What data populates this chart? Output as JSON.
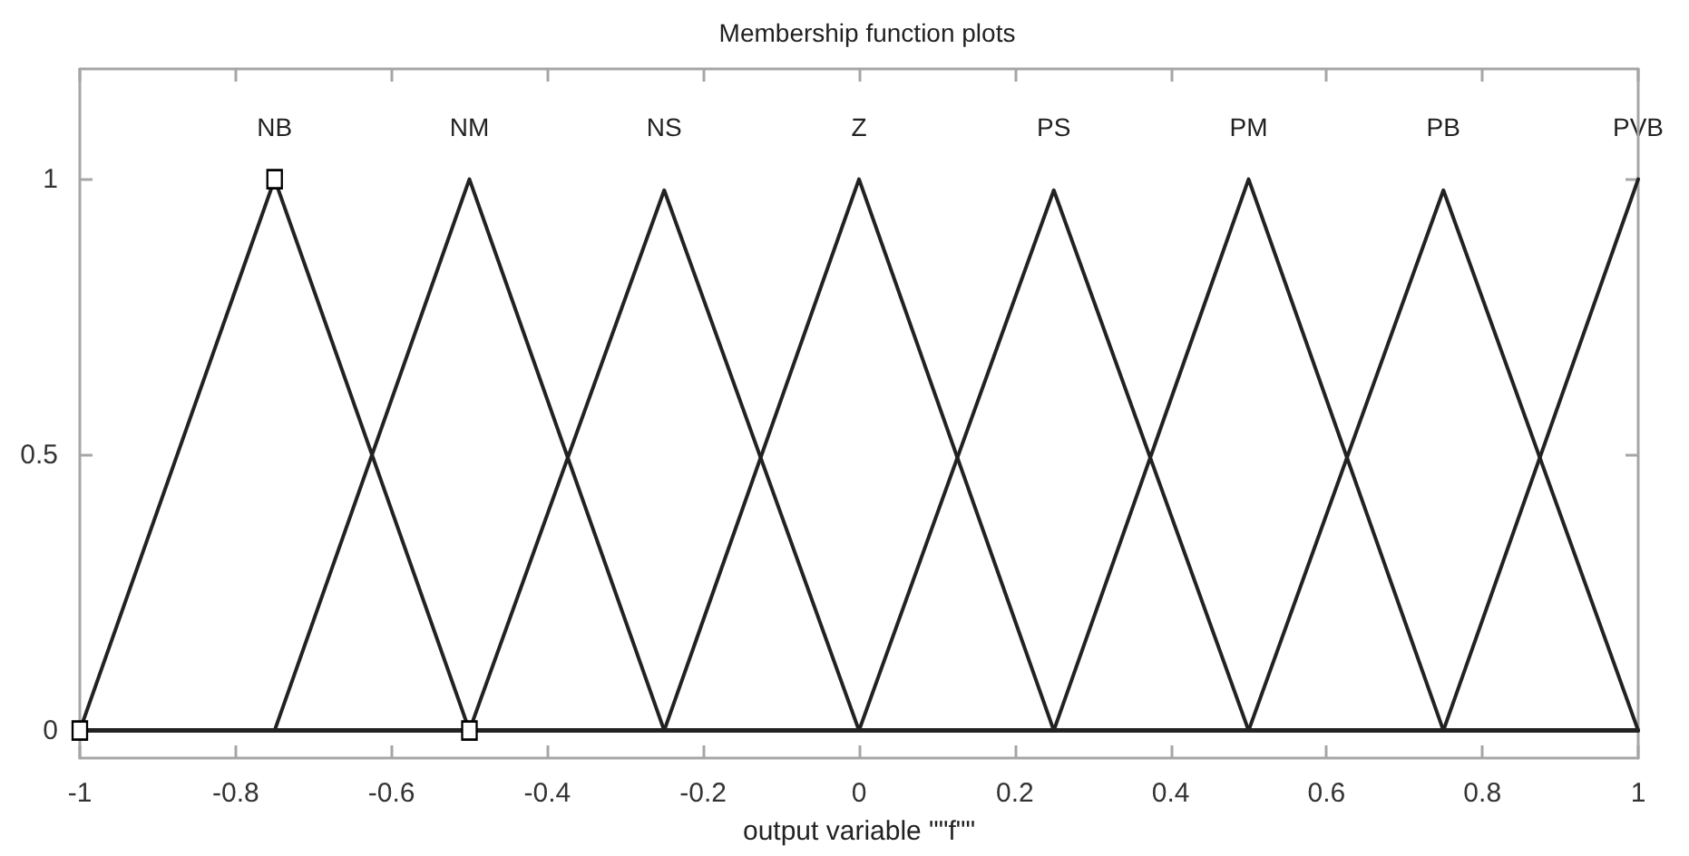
{
  "chart_data": {
    "type": "line",
    "title": "Membership function plots",
    "xlabel": "output variable \"\"f\"\"",
    "xlim": [
      -1,
      1
    ],
    "xticks": [
      -1,
      -0.8,
      -0.6,
      -0.4,
      -0.2,
      0,
      0.2,
      0.4,
      0.6,
      0.8,
      1
    ],
    "ylim": [
      -0.05,
      1.2
    ],
    "yticks": [
      0,
      0.5,
      1
    ],
    "line_style": "solid",
    "series": [
      {
        "name": "NB",
        "color": "#222222",
        "x": [
          -1,
          -0.75,
          -0.5,
          1
        ],
        "values": [
          0,
          1,
          0,
          0
        ]
      },
      {
        "name": "NM",
        "color": "#222222",
        "x": [
          -1,
          -0.75,
          -0.5,
          -0.25,
          1
        ],
        "values": [
          0,
          0,
          1,
          0,
          0
        ]
      },
      {
        "name": "NS",
        "color": "#222222",
        "x": [
          -1,
          -0.5,
          -0.25,
          0,
          1
        ],
        "values": [
          0,
          0,
          0.98,
          0,
          0
        ]
      },
      {
        "name": "Z",
        "color": "#222222",
        "x": [
          -1,
          -0.25,
          0,
          0.25,
          1
        ],
        "values": [
          0,
          0,
          1,
          0,
          0
        ]
      },
      {
        "name": "PS",
        "color": "#222222",
        "x": [
          -1,
          0,
          0.25,
          0.5,
          1
        ],
        "values": [
          0,
          0,
          0.98,
          0,
          0
        ]
      },
      {
        "name": "PM",
        "color": "#222222",
        "x": [
          -1,
          0.25,
          0.5,
          0.75,
          1
        ],
        "values": [
          0,
          0,
          1,
          0,
          0
        ]
      },
      {
        "name": "PB",
        "color": "#222222",
        "x": [
          -1,
          0.5,
          0.75,
          1
        ],
        "values": [
          0,
          0,
          0.98,
          0
        ]
      },
      {
        "name": "PVB",
        "color": "#222222",
        "x": [
          -1,
          0.75,
          1
        ],
        "values": [
          0,
          0,
          1
        ]
      },
      {
        "type": "scatter",
        "marker": "square",
        "color": "#000000",
        "x": [
          -1,
          -0.75,
          -0.5
        ],
        "values": [
          0,
          1,
          0
        ]
      }
    ]
  }
}
